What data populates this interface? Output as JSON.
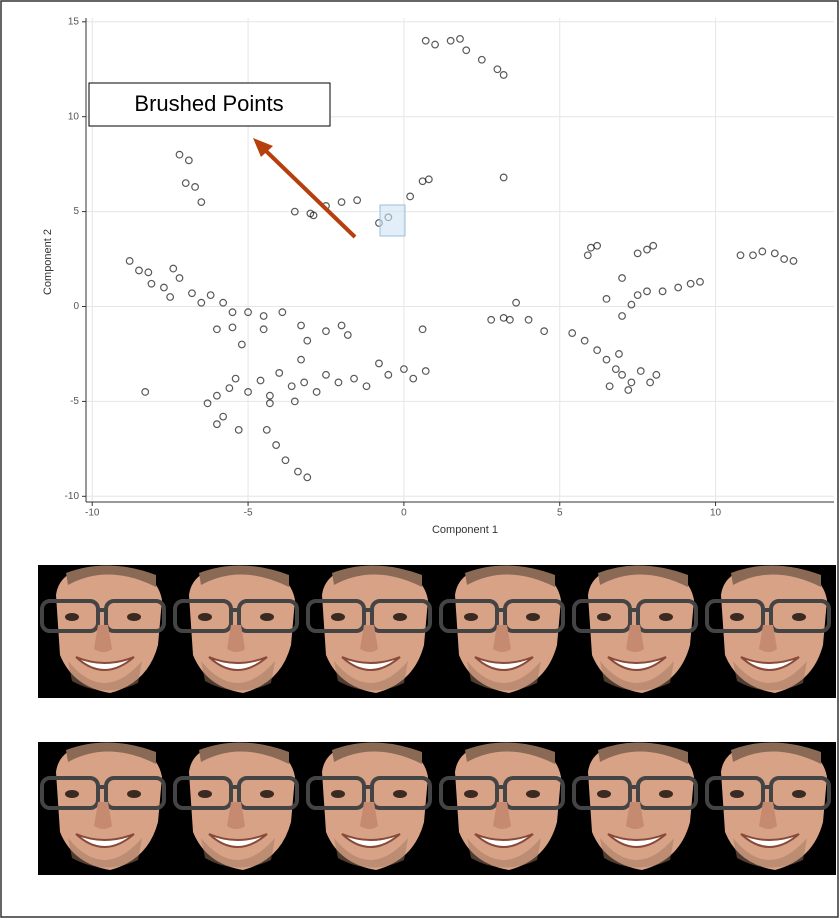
{
  "chart_data": {
    "type": "scatter",
    "x_label": "Component 1",
    "y_label": "Component 2",
    "annotation": "Brushed Points",
    "color": "#000000",
    "xlim": [
      -10.2,
      13.8
    ],
    "ylim": [
      -10.3,
      15.2
    ],
    "xticks": [
      -10,
      -5,
      0,
      5,
      10
    ],
    "yticks": [
      -10,
      -5,
      0,
      5,
      10,
      15
    ],
    "grid": true,
    "x": [
      0.7,
      1,
      1.5,
      1.8,
      2,
      2.5,
      3,
      3.2,
      -7.2,
      -6.9,
      -7,
      -6.7,
      -6.5,
      -3.5,
      -3,
      -2.5,
      -2,
      -1.5,
      -2.9,
      -0.8,
      -0.5,
      0.2,
      0.6,
      0.8,
      3.2,
      -8.8,
      -8.5,
      -8.2,
      -8.1,
      -7.7,
      -7.5,
      -7.4,
      -7.2,
      -6.8,
      -6.5,
      -6.2,
      -5.8,
      -5.5,
      -5,
      -4.5,
      -4.5,
      -5.5,
      -6,
      -5.2,
      -3.9,
      -3.3,
      -3.1,
      -2.5,
      -2,
      -1.8,
      -3.3,
      -6,
      -5.6,
      -5.4,
      -5,
      -4.6,
      -4.3,
      -4,
      -3.6,
      -3.2,
      -2.8,
      -2.5,
      -2.1,
      -1.6,
      -1.2,
      -0.8,
      -0.5,
      0,
      0.3,
      0.7,
      0.6,
      -3.5,
      -4.3,
      -5.8,
      -6,
      -5.3,
      -4.4,
      -4.1,
      -3.8,
      -3.4,
      -3.1,
      -8.3,
      -6.3,
      2.8,
      3.2,
      3.4,
      3.6,
      4,
      4.5,
      5.4,
      5.8,
      5.9,
      6,
      6.2,
      7.5,
      7.8,
      8,
      6.2,
      6.5,
      6.8,
      7,
      7.3,
      7.6,
      7.9,
      8.1,
      6.6,
      7.2,
      6.9,
      6.5,
      7,
      7.3,
      7.5,
      7.8,
      8.3,
      8.8,
      9.2,
      9.5,
      7,
      10.8,
      11.2,
      11.5,
      11.9,
      12.2,
      12.5
    ],
    "y": [
      14,
      13.8,
      14,
      14.1,
      13.5,
      13,
      12.5,
      12.2,
      8,
      7.7,
      6.5,
      6.3,
      5.5,
      5,
      4.9,
      5.3,
      5.5,
      5.6,
      4.8,
      4.4,
      4.7,
      5.8,
      6.6,
      6.7,
      6.8,
      2.4,
      1.9,
      1.8,
      1.2,
      1,
      0.5,
      2,
      1.5,
      0.7,
      0.2,
      0.6,
      0.2,
      -0.3,
      -0.3,
      -0.5,
      -1.2,
      -1.1,
      -1.2,
      -2,
      -0.3,
      -1,
      -1.8,
      -1.3,
      -1,
      -1.5,
      -2.8,
      -4.7,
      -4.3,
      -3.8,
      -4.5,
      -3.9,
      -4.7,
      -3.5,
      -4.2,
      -4,
      -4.5,
      -3.6,
      -4,
      -3.8,
      -4.2,
      -3,
      -3.6,
      -3.3,
      -3.8,
      -3.4,
      -1.2,
      -5,
      -5.1,
      -5.8,
      -6.2,
      -6.5,
      -6.5,
      -7.3,
      -8.1,
      -8.7,
      -9,
      -4.5,
      -5.1,
      -0.7,
      -0.6,
      -0.7,
      0.2,
      -0.7,
      -1.3,
      -1.4,
      -1.8,
      2.7,
      3.1,
      3.2,
      2.8,
      3,
      3.2,
      -2.3,
      -2.8,
      -3.3,
      -3.6,
      -4,
      -3.4,
      -4,
      -3.6,
      -4.2,
      -4.4,
      -2.5,
      0.4,
      -0.5,
      0.1,
      0.6,
      0.8,
      0.8,
      1,
      1.2,
      1.3,
      1.5,
      2.7,
      2.7,
      2.9,
      2.8,
      2.5,
      2.4
    ]
  }
}
